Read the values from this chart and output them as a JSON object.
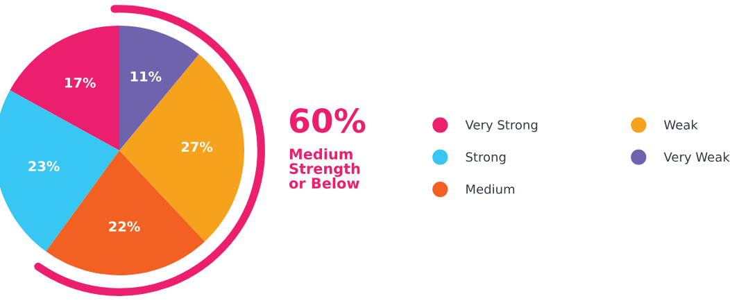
{
  "chart_data": {
    "type": "pie",
    "categories": [
      "Very Strong",
      "Strong",
      "Medium",
      "Weak",
      "Very Weak"
    ],
    "values": [
      17,
      23,
      22,
      27,
      11
    ],
    "colors": [
      "#ec1f6e",
      "#38c6f2",
      "#f26022",
      "#f7a21d",
      "#6e63ac"
    ],
    "value_labels": [
      "17%",
      "23%",
      "22%",
      "27%",
      "11%"
    ],
    "legend": "right",
    "annotations": [
      "60%",
      "Medium\nStrength\nor Below"
    ]
  }
}
